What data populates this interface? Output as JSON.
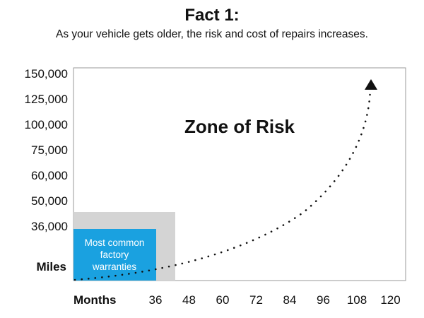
{
  "header": {
    "title": "Fact 1:",
    "subtitle": "As your vehicle gets older, the risk and cost of repairs increases."
  },
  "chart_data": {
    "type": "line",
    "xlabel": "Months",
    "ylabel": "Miles",
    "x_ticks": [
      "36",
      "48",
      "60",
      "72",
      "84",
      "96",
      "108",
      "120"
    ],
    "y_ticks": [
      "150,000",
      "125,000",
      "100,000",
      "75,000",
      "60,000",
      "50,000",
      "36,000"
    ],
    "annotation": "Zone of Risk",
    "regions": [
      {
        "label": "",
        "color": "#d4d4d4"
      },
      {
        "label_lines": [
          "Most common",
          "factory",
          "warranties"
        ],
        "color": "#1aa1e0"
      }
    ],
    "curve": {
      "style": "dotted",
      "arrow": true,
      "color": "#111111"
    }
  }
}
